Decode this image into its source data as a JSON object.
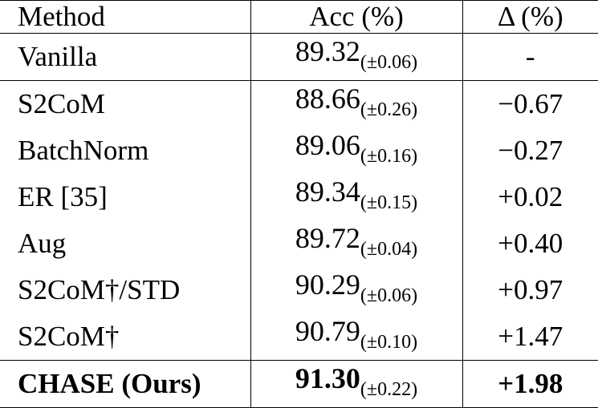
{
  "table": {
    "headers": {
      "method": "Method",
      "acc": "Acc (%)",
      "delta": "Δ (%)"
    },
    "rows": [
      {
        "method": "Vanilla",
        "acc": "89.32",
        "std": "(±0.06)",
        "delta": "-"
      },
      {
        "method": "S2CoM",
        "acc": "88.66",
        "std": "(±0.26)",
        "delta": "−0.67"
      },
      {
        "method": "BatchNorm",
        "acc": "89.06",
        "std": "(±0.16)",
        "delta": "−0.27"
      },
      {
        "method": "ER [35]",
        "acc": "89.34",
        "std": "(±0.15)",
        "delta": "+0.02"
      },
      {
        "method": "Aug",
        "acc": "89.72",
        "std": "(±0.04)",
        "delta": "+0.40"
      },
      {
        "method": "S2CoM†/STD",
        "acc": "90.29",
        "std": "(±0.06)",
        "delta": "+0.97"
      },
      {
        "method": "S2CoM†",
        "acc": "90.79",
        "std": "(±0.10)",
        "delta": "+1.47"
      },
      {
        "method": "CHASE (Ours)",
        "acc": "91.30",
        "std": "(±0.22)",
        "delta": "+1.98"
      }
    ]
  }
}
